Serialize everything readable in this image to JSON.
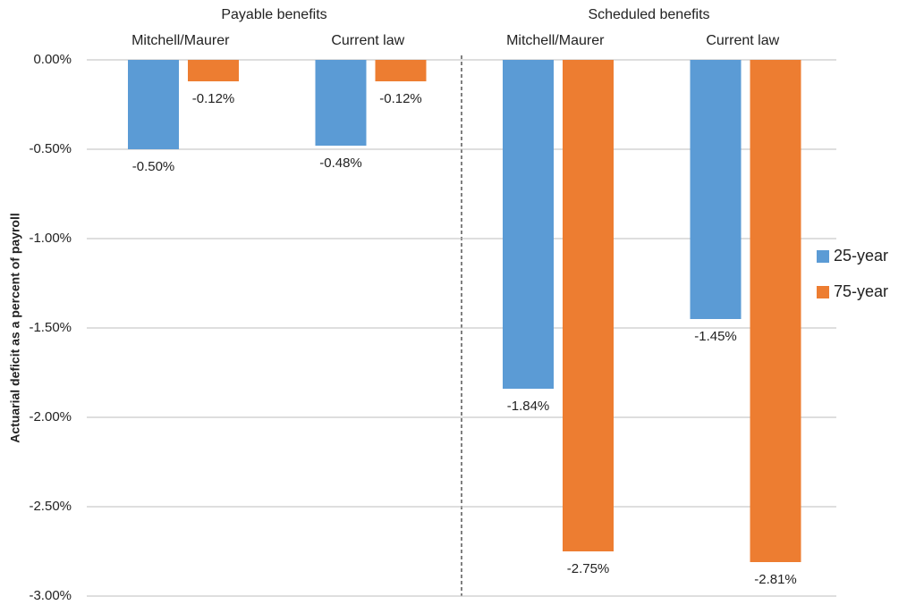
{
  "chart_data": {
    "type": "bar",
    "group_labels": [
      "Payable benefits",
      "Scheduled benefits"
    ],
    "categories": [
      "Mitchell/Maurer",
      "Current law",
      "Mitchell/Maurer",
      "Current law"
    ],
    "y_label": "Actuarial deficit as a percent of payroll",
    "series": [
      {
        "name": "25-year",
        "color": "#5b9bd5",
        "values": [
          -0.5,
          -0.48,
          -1.84,
          -1.45
        ],
        "value_labels": [
          "-0.50%",
          "-0.48%",
          "-1.84%",
          "-1.45%"
        ]
      },
      {
        "name": "75-year",
        "color": "#ed7d31",
        "values": [
          -0.12,
          -0.12,
          -2.75,
          -2.81
        ],
        "value_labels": [
          "-0.12%",
          "-0.12%",
          "-2.75%",
          "-2.81%"
        ]
      }
    ],
    "ylim": [
      -3,
      0
    ],
    "yticks": [
      {
        "value": 0,
        "label": "0.00%"
      },
      {
        "value": -0.5,
        "label": "-0.50%"
      },
      {
        "value": -1,
        "label": "-1.00%"
      },
      {
        "value": -1.5,
        "label": "-1.50%"
      },
      {
        "value": -2,
        "label": "-2.00%"
      },
      {
        "value": -2.5,
        "label": "-2.50%"
      },
      {
        "value": -3,
        "label": "-3.00%"
      }
    ],
    "grid": true,
    "legend": "right"
  }
}
